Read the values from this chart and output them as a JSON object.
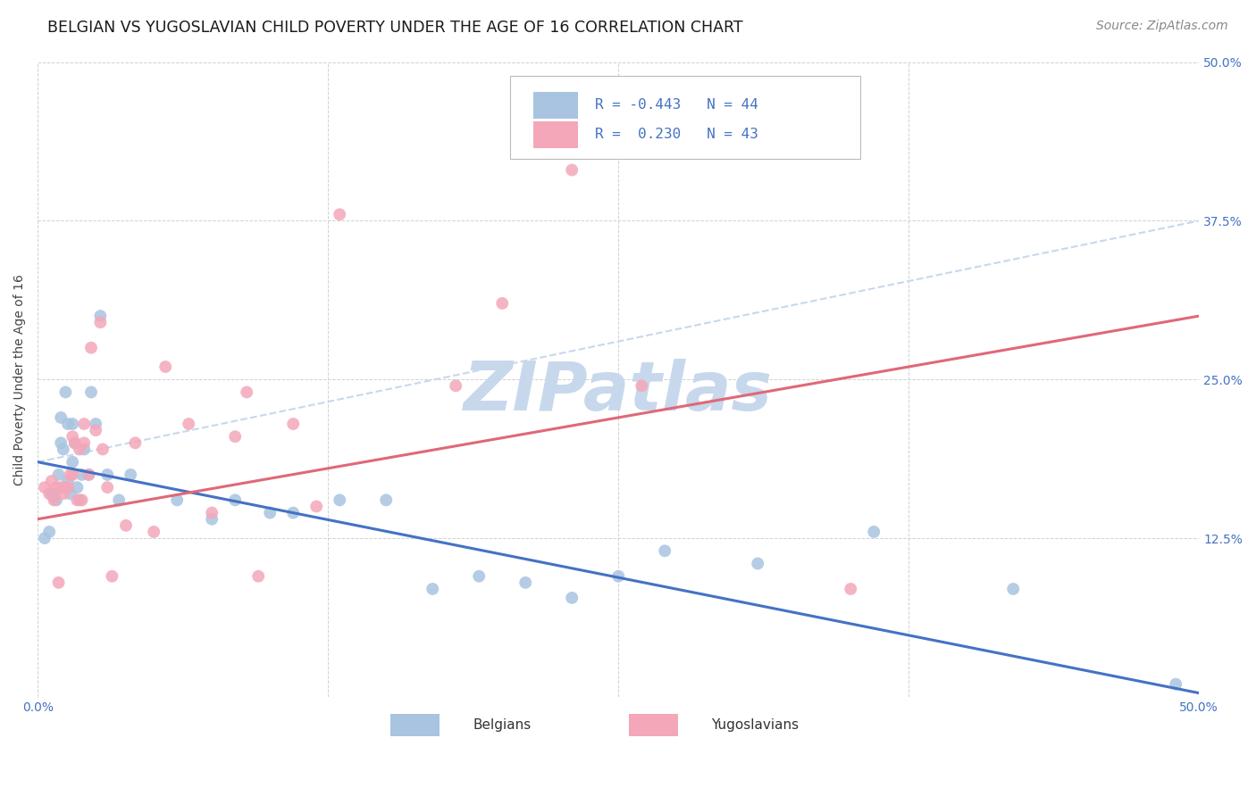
{
  "title": "BELGIAN VS YUGOSLAVIAN CHILD POVERTY UNDER THE AGE OF 16 CORRELATION CHART",
  "source": "Source: ZipAtlas.com",
  "ylabel": "Child Poverty Under the Age of 16",
  "xlim": [
    0.0,
    0.5
  ],
  "ylim": [
    0.0,
    0.5
  ],
  "watermark": "ZIPatlas",
  "belgian_color": "#a8c4e0",
  "yugoslavian_color": "#f4a7b9",
  "belgian_line_color": "#4472c4",
  "yugoslavian_line_color": "#e06878",
  "trendline_dashed_color": "#c8d8ec",
  "belgians_label": "Belgians",
  "yugoslavians_label": "Yugoslavians",
  "belgian_points_x": [
    0.003,
    0.005,
    0.006,
    0.007,
    0.008,
    0.009,
    0.01,
    0.01,
    0.011,
    0.012,
    0.013,
    0.013,
    0.014,
    0.015,
    0.015,
    0.016,
    0.017,
    0.018,
    0.019,
    0.02,
    0.022,
    0.023,
    0.025,
    0.027,
    0.03,
    0.035,
    0.04,
    0.06,
    0.075,
    0.085,
    0.1,
    0.11,
    0.13,
    0.15,
    0.17,
    0.19,
    0.21,
    0.23,
    0.25,
    0.27,
    0.31,
    0.36,
    0.42,
    0.49
  ],
  "belgian_points_y": [
    0.125,
    0.13,
    0.16,
    0.158,
    0.155,
    0.175,
    0.2,
    0.22,
    0.195,
    0.24,
    0.17,
    0.215,
    0.16,
    0.185,
    0.215,
    0.2,
    0.165,
    0.155,
    0.175,
    0.195,
    0.175,
    0.24,
    0.215,
    0.3,
    0.175,
    0.155,
    0.175,
    0.155,
    0.14,
    0.155,
    0.145,
    0.145,
    0.155,
    0.155,
    0.085,
    0.095,
    0.09,
    0.078,
    0.095,
    0.115,
    0.105,
    0.13,
    0.085,
    0.01
  ],
  "yugoslavian_points_x": [
    0.003,
    0.005,
    0.006,
    0.007,
    0.008,
    0.009,
    0.01,
    0.011,
    0.012,
    0.013,
    0.014,
    0.015,
    0.015,
    0.016,
    0.017,
    0.018,
    0.019,
    0.02,
    0.02,
    0.022,
    0.023,
    0.025,
    0.027,
    0.028,
    0.03,
    0.032,
    0.038,
    0.042,
    0.055,
    0.065,
    0.075,
    0.085,
    0.095,
    0.11,
    0.12,
    0.13,
    0.18,
    0.2,
    0.23,
    0.26,
    0.35,
    0.05,
    0.09
  ],
  "yugoslavian_points_y": [
    0.165,
    0.16,
    0.17,
    0.155,
    0.165,
    0.09,
    0.165,
    0.16,
    0.165,
    0.165,
    0.175,
    0.175,
    0.205,
    0.2,
    0.155,
    0.195,
    0.155,
    0.215,
    0.2,
    0.175,
    0.275,
    0.21,
    0.295,
    0.195,
    0.165,
    0.095,
    0.135,
    0.2,
    0.26,
    0.215,
    0.145,
    0.205,
    0.095,
    0.215,
    0.15,
    0.38,
    0.245,
    0.31,
    0.415,
    0.245,
    0.085,
    0.13,
    0.24
  ],
  "belgian_trendline_x": [
    0.0,
    0.5
  ],
  "belgian_trendline_y": [
    0.185,
    0.003
  ],
  "yugoslavian_trendline_x": [
    0.0,
    0.5
  ],
  "yugoslavian_trendline_y": [
    0.14,
    0.3
  ],
  "dashed_trendline_x": [
    0.0,
    0.5
  ],
  "dashed_trendline_y": [
    0.185,
    0.375
  ],
  "grid_color": "#cccccc",
  "background_color": "#ffffff",
  "title_fontsize": 12.5,
  "axis_label_fontsize": 10,
  "tick_fontsize": 10,
  "source_fontsize": 10,
  "legend_fontsize": 12,
  "watermark_fontsize": 55,
  "watermark_color": "#c8d8ec",
  "right_tick_color": "#4472c4",
  "bottom_tick_color": "#4472c4"
}
